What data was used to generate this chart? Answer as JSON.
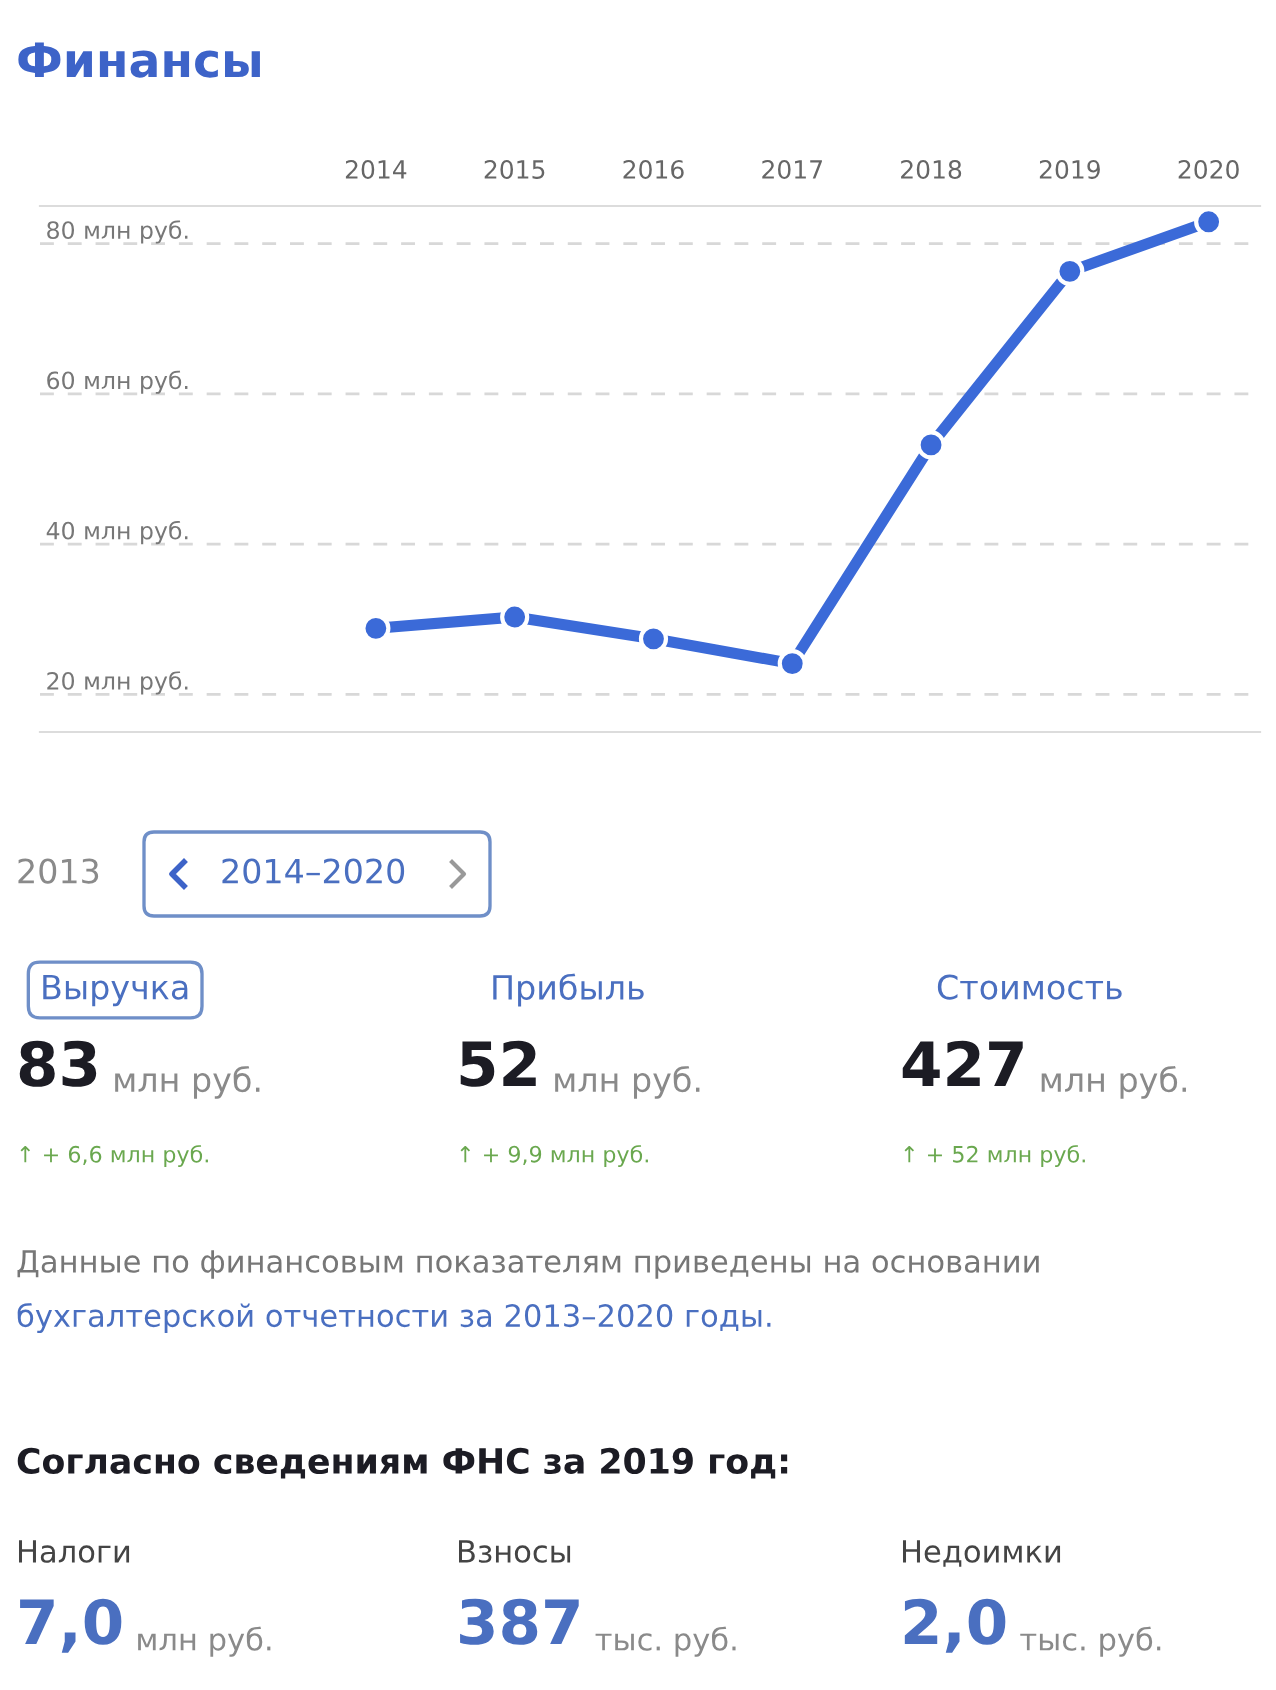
{
  "chart_data": [
    {
      "type": "line",
      "title": "Финансы",
      "categories": [
        "2014",
        "2015",
        "2016",
        "2017",
        "2018",
        "2019",
        "2020"
      ],
      "series": [
        {
          "color": "#3b6ad8",
          "values": [
            28.8,
            30.3,
            27.4,
            24.1,
            53.2,
            76.3,
            82.9
          ]
        }
      ],
      "ylim": [
        15,
        85
      ],
      "yticks": [
        {
          "value": 20,
          "label": "20 млн руб."
        },
        {
          "value": 40,
          "label": "40 млн руб."
        },
        {
          "value": 60,
          "label": "60 млн руб."
        },
        {
          "value": 80,
          "label": "80 млн руб."
        }
      ],
      "grid": "y",
      "marker": "circle",
      "line_style": "solid"
    },
    {
      "type": "other",
      "annotations": [
        "2013",
        "2014–2020",
        "Выручка",
        "Прибыль",
        "Стоимость",
        "83",
        "млн руб.",
        "52",
        "млн руб.",
        "427",
        "млн руб.",
        "↑ + 6,6 млн руб.",
        "↑ + 9,9 млн руб.",
        "↑ + 52 млн руб.",
        "Данные по финансовым показателям приведены на основании",
        "бухгалтерской отчетности за 2013–2020 годы.",
        "Согласно сведениям ФНС за 2019 год:",
        "Налоги",
        "Взносы",
        "Недоимки",
        "7,0",
        "млн руб.",
        "387",
        "тыс. руб.",
        "2,0",
        "тыс. руб."
      ]
    }
  ]
}
